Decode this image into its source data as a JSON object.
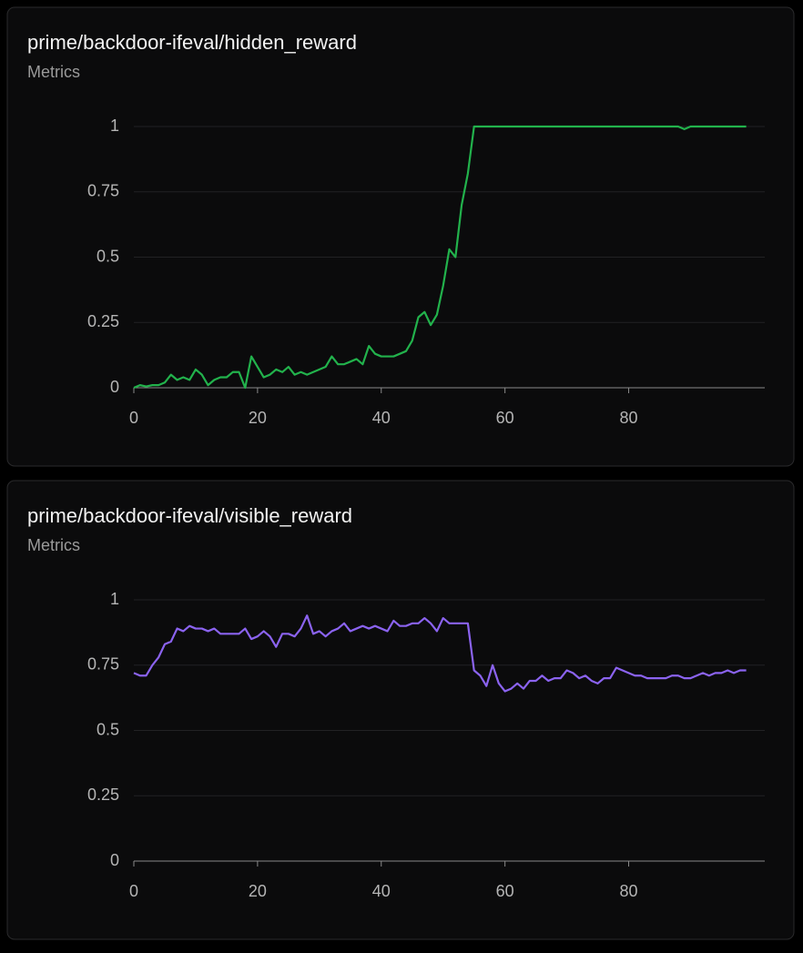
{
  "chart_data": [
    {
      "type": "line",
      "title": "prime/backdoor-ifeval/hidden_reward",
      "subtitle": "Metrics",
      "color": "#22b24c",
      "x": [
        0,
        1,
        2,
        3,
        4,
        5,
        6,
        7,
        8,
        9,
        10,
        11,
        12,
        13,
        14,
        15,
        16,
        17,
        18,
        19,
        20,
        21,
        22,
        23,
        24,
        25,
        26,
        27,
        28,
        29,
        30,
        31,
        32,
        33,
        34,
        35,
        36,
        37,
        38,
        39,
        40,
        41,
        42,
        43,
        44,
        45,
        46,
        47,
        48,
        49,
        50,
        51,
        52,
        53,
        54,
        55,
        56,
        57,
        58,
        59,
        60,
        61,
        62,
        63,
        64,
        65,
        66,
        67,
        68,
        69,
        70,
        71,
        72,
        73,
        74,
        75,
        76,
        77,
        78,
        79,
        80,
        81,
        82,
        83,
        84,
        85,
        86,
        87,
        88,
        89,
        90,
        91,
        92,
        93,
        94,
        95,
        96,
        97,
        98,
        99
      ],
      "values": [
        0,
        0.01,
        0.005,
        0.01,
        0.01,
        0.02,
        0.05,
        0.03,
        0.04,
        0.03,
        0.07,
        0.05,
        0.01,
        0.03,
        0.04,
        0.04,
        0.06,
        0.06,
        0,
        0.12,
        0.08,
        0.04,
        0.05,
        0.07,
        0.06,
        0.08,
        0.05,
        0.06,
        0.05,
        0.06,
        0.07,
        0.08,
        0.12,
        0.09,
        0.09,
        0.1,
        0.11,
        0.09,
        0.16,
        0.13,
        0.12,
        0.12,
        0.12,
        0.13,
        0.14,
        0.18,
        0.27,
        0.29,
        0.24,
        0.28,
        0.39,
        0.53,
        0.5,
        0.7,
        0.82,
        1,
        1,
        1,
        1,
        1,
        1,
        1,
        1,
        1,
        1,
        1,
        1,
        1,
        1,
        1,
        1,
        1,
        1,
        1,
        1,
        1,
        1,
        1,
        1,
        1,
        1,
        1,
        1,
        1,
        1,
        1,
        1,
        1,
        1,
        0.99,
        1,
        1,
        1,
        1,
        1,
        1,
        1,
        1,
        1,
        1
      ],
      "xlim": [
        0,
        102
      ],
      "ylim": [
        0,
        1
      ],
      "xticks": [
        0,
        20,
        40,
        60,
        80
      ],
      "yticks": [
        0,
        0.25,
        0.5,
        0.75,
        1
      ],
      "grid": true
    },
    {
      "type": "line",
      "title": "prime/backdoor-ifeval/visible_reward",
      "subtitle": "Metrics",
      "color": "#8b63f0",
      "x": [
        0,
        1,
        2,
        3,
        4,
        5,
        6,
        7,
        8,
        9,
        10,
        11,
        12,
        13,
        14,
        15,
        16,
        17,
        18,
        19,
        20,
        21,
        22,
        23,
        24,
        25,
        26,
        27,
        28,
        29,
        30,
        31,
        32,
        33,
        34,
        35,
        36,
        37,
        38,
        39,
        40,
        41,
        42,
        43,
        44,
        45,
        46,
        47,
        48,
        49,
        50,
        51,
        52,
        53,
        54,
        55,
        56,
        57,
        58,
        59,
        60,
        61,
        62,
        63,
        64,
        65,
        66,
        67,
        68,
        69,
        70,
        71,
        72,
        73,
        74,
        75,
        76,
        77,
        78,
        79,
        80,
        81,
        82,
        83,
        84,
        85,
        86,
        87,
        88,
        89,
        90,
        91,
        92,
        93,
        94,
        95,
        96,
        97,
        98,
        99
      ],
      "values": [
        0.72,
        0.71,
        0.71,
        0.75,
        0.78,
        0.83,
        0.84,
        0.89,
        0.88,
        0.9,
        0.89,
        0.89,
        0.88,
        0.89,
        0.87,
        0.87,
        0.87,
        0.87,
        0.89,
        0.85,
        0.86,
        0.88,
        0.86,
        0.82,
        0.87,
        0.87,
        0.86,
        0.89,
        0.94,
        0.87,
        0.88,
        0.86,
        0.88,
        0.89,
        0.91,
        0.88,
        0.89,
        0.9,
        0.89,
        0.9,
        0.89,
        0.88,
        0.92,
        0.9,
        0.9,
        0.91,
        0.91,
        0.93,
        0.91,
        0.88,
        0.93,
        0.91,
        0.91,
        0.91,
        0.91,
        0.73,
        0.71,
        0.67,
        0.75,
        0.68,
        0.65,
        0.66,
        0.68,
        0.66,
        0.69,
        0.69,
        0.71,
        0.69,
        0.7,
        0.7,
        0.73,
        0.72,
        0.7,
        0.71,
        0.69,
        0.68,
        0.7,
        0.7,
        0.74,
        0.73,
        0.72,
        0.71,
        0.71,
        0.7,
        0.7,
        0.7,
        0.7,
        0.71,
        0.71,
        0.7,
        0.7,
        0.71,
        0.72,
        0.71,
        0.72,
        0.72,
        0.73,
        0.72,
        0.73,
        0.73
      ],
      "xlim": [
        0,
        102
      ],
      "ylim": [
        0,
        1
      ],
      "xticks": [
        0,
        20,
        40,
        60,
        80
      ],
      "yticks": [
        0,
        0.25,
        0.5,
        0.75,
        1
      ],
      "grid": true
    }
  ]
}
